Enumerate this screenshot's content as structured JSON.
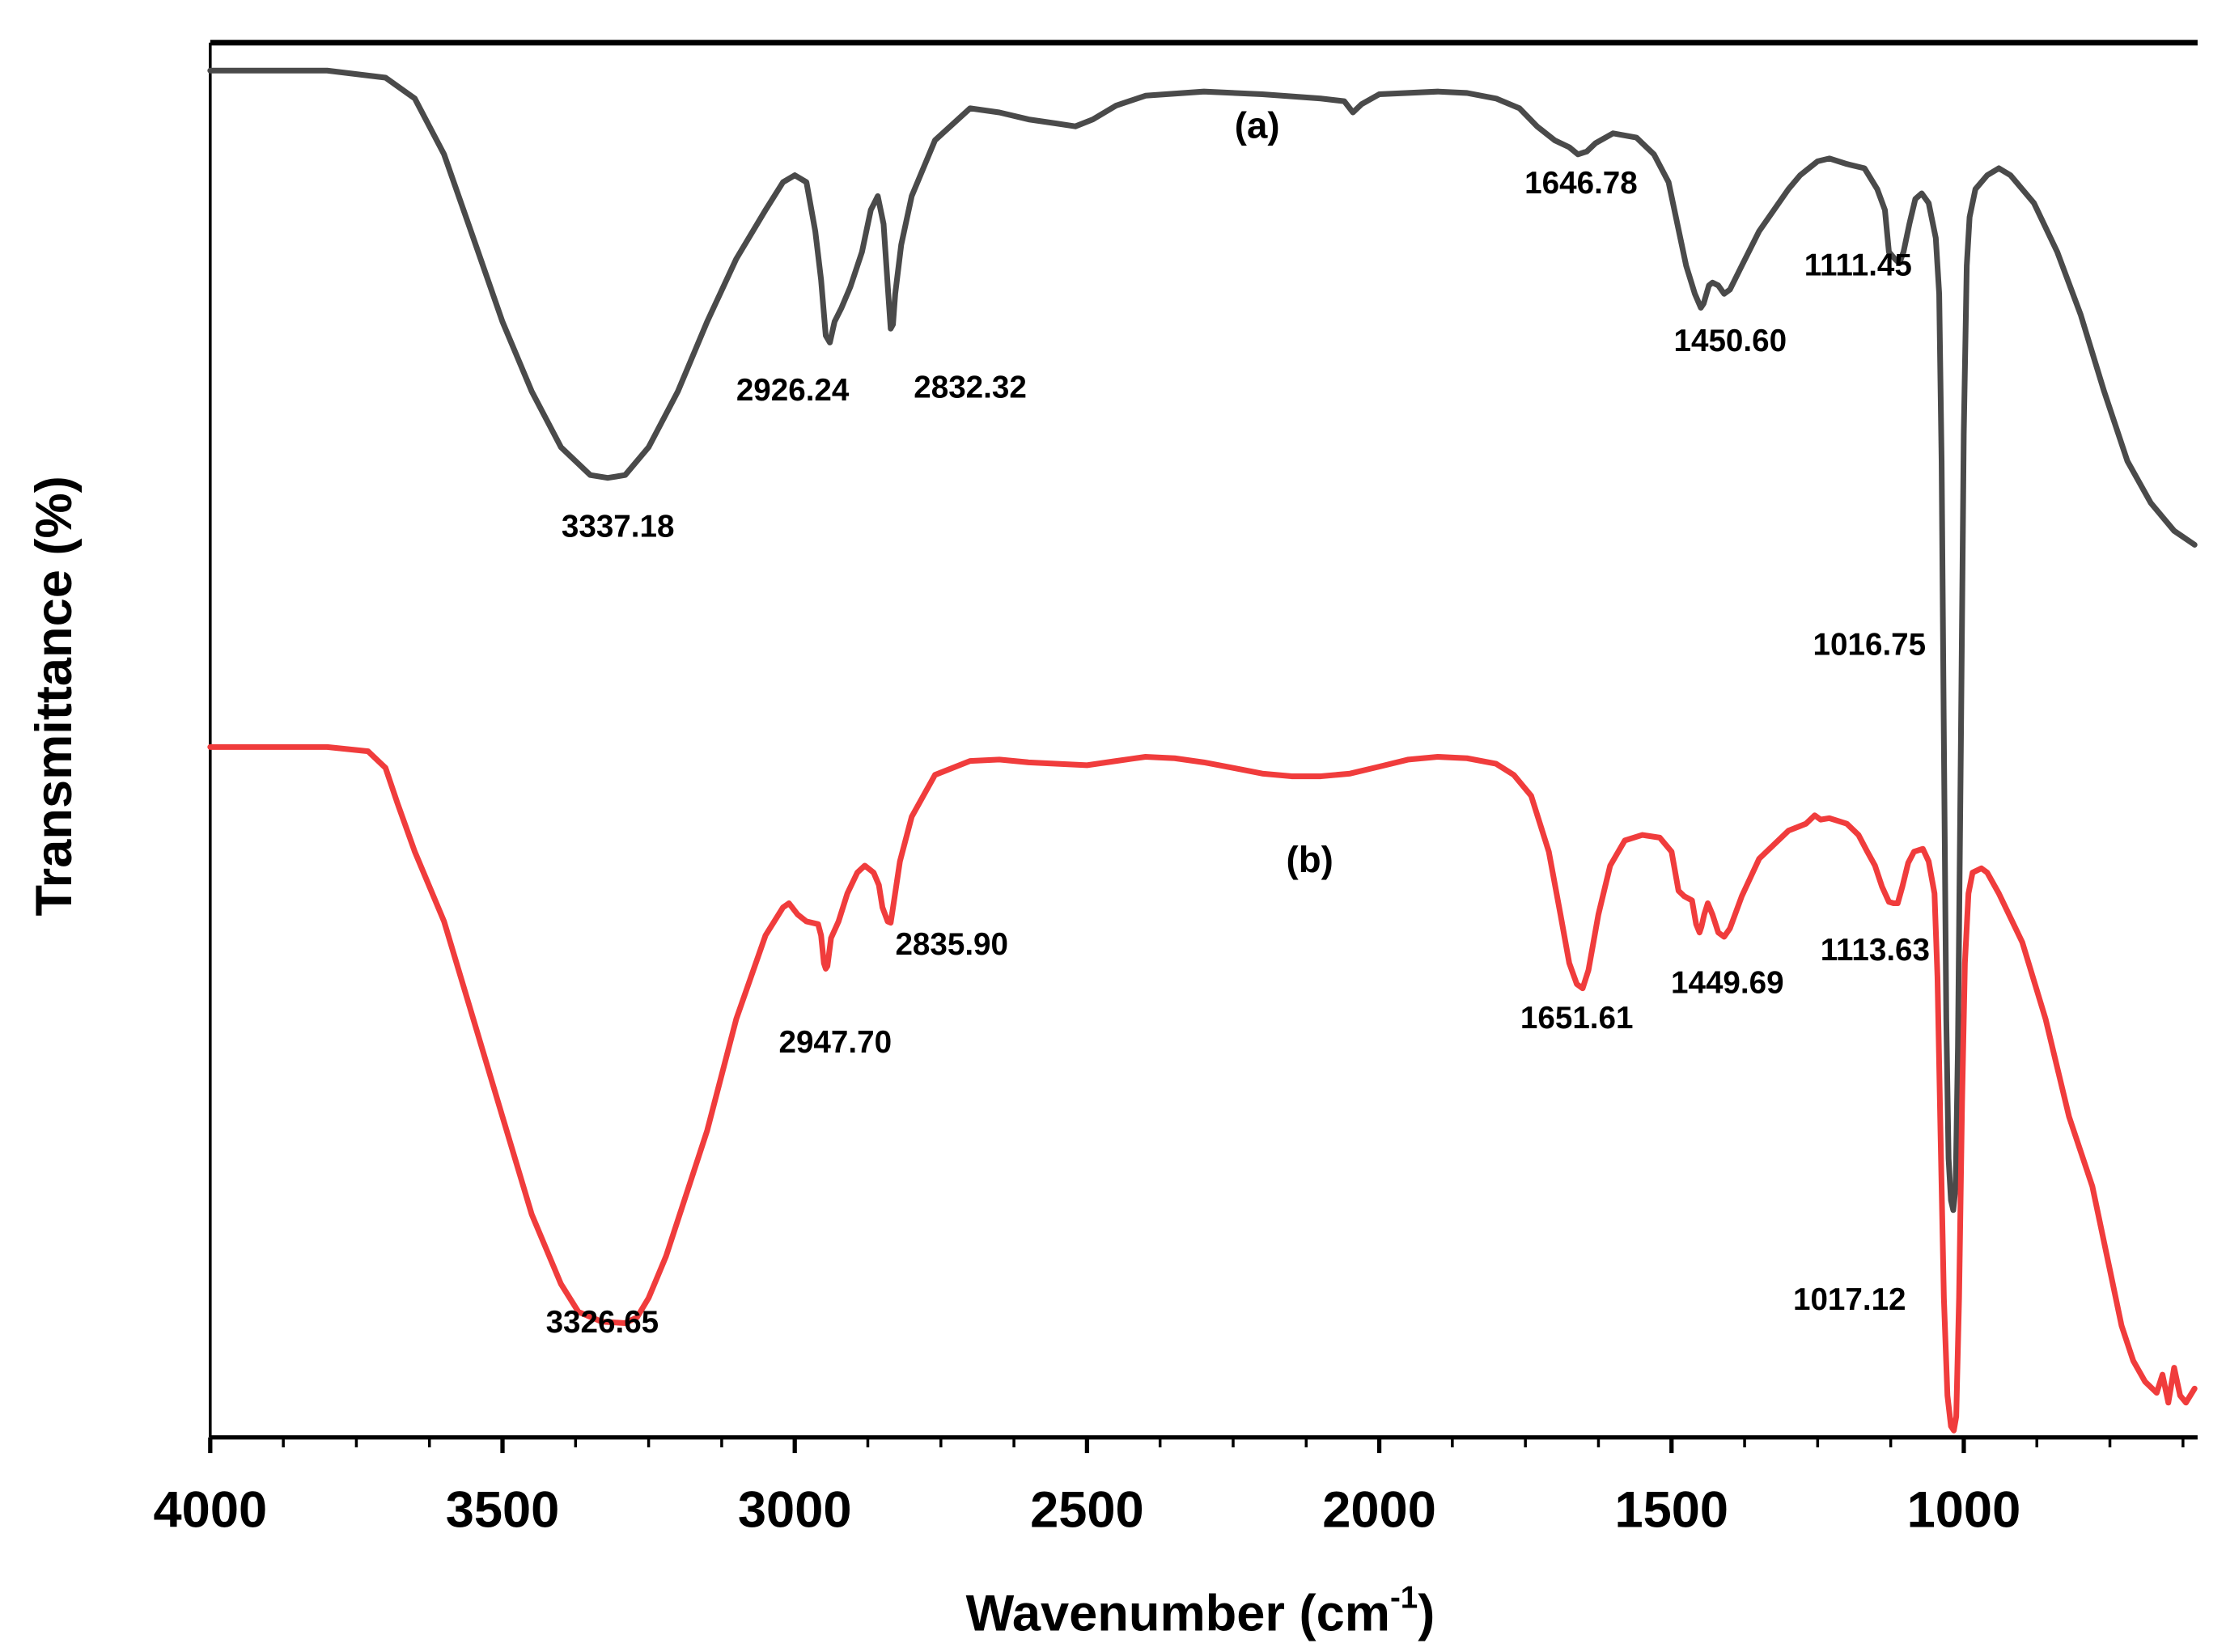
{
  "chart_data": {
    "type": "line",
    "title": "",
    "xlabel": "Wavenumber (cm",
    "xlabel_sup": "-1",
    "xlabel_end": ")",
    "ylabel": "Transmittance (%)",
    "xlim": [
      4000,
      600
    ],
    "x_reversed": true,
    "x_ticks": [
      {
        "value": 4000,
        "label": "4000"
      },
      {
        "value": 3500,
        "label": "3500"
      },
      {
        "value": 3000,
        "label": "3000"
      },
      {
        "value": 2500,
        "label": "2500"
      },
      {
        "value": 2000,
        "label": "2000"
      },
      {
        "value": 1500,
        "label": "1500"
      },
      {
        "value": 1000,
        "label": "1000"
      }
    ],
    "grid": false,
    "y_units": "relative transmittance (0 = bottom of plot, 100 = top of plot)",
    "series": [
      {
        "name": "(a)",
        "tag": "(a)",
        "tag_position": {
          "x": 1920,
          "y": 91
        },
        "color": "#4a4a4a",
        "points": [
          [
            4000,
            98
          ],
          [
            3900,
            98
          ],
          [
            3800,
            98
          ],
          [
            3700,
            97.5
          ],
          [
            3650,
            96
          ],
          [
            3600,
            92
          ],
          [
            3550,
            86
          ],
          [
            3500,
            80
          ],
          [
            3450,
            75
          ],
          [
            3400,
            71
          ],
          [
            3350,
            69
          ],
          [
            3320,
            68.8
          ],
          [
            3290,
            69
          ],
          [
            3250,
            71
          ],
          [
            3200,
            75
          ],
          [
            3150,
            80
          ],
          [
            3100,
            84.5
          ],
          [
            3050,
            88
          ],
          [
            3020,
            90
          ],
          [
            3000,
            90.5
          ],
          [
            2980,
            90
          ],
          [
            2965,
            86.5
          ],
          [
            2955,
            83
          ],
          [
            2947,
            79
          ],
          [
            2940,
            78.5
          ],
          [
            2932,
            80
          ],
          [
            2920,
            81
          ],
          [
            2905,
            82.5
          ],
          [
            2885,
            85
          ],
          [
            2870,
            88
          ],
          [
            2858,
            89
          ],
          [
            2848,
            87
          ],
          [
            2840,
            82
          ],
          [
            2836,
            79.5
          ],
          [
            2832,
            79.8
          ],
          [
            2828,
            82
          ],
          [
            2818,
            85.5
          ],
          [
            2800,
            89
          ],
          [
            2760,
            93
          ],
          [
            2700,
            95.3
          ],
          [
            2650,
            95
          ],
          [
            2600,
            94.5
          ],
          [
            2550,
            94.2
          ],
          [
            2520,
            94
          ],
          [
            2490,
            94.5
          ],
          [
            2450,
            95.5
          ],
          [
            2400,
            96.2
          ],
          [
            2300,
            96.5
          ],
          [
            2200,
            96.3
          ],
          [
            2100,
            96
          ],
          [
            2060,
            95.8
          ],
          [
            2045,
            95
          ],
          [
            2030,
            95.6
          ],
          [
            2000,
            96.3
          ],
          [
            1900,
            96.5
          ],
          [
            1850,
            96.4
          ],
          [
            1800,
            96
          ],
          [
            1760,
            95.3
          ],
          [
            1730,
            94
          ],
          [
            1700,
            93
          ],
          [
            1675,
            92.5
          ],
          [
            1660,
            92
          ],
          [
            1645,
            92.2
          ],
          [
            1630,
            92.8
          ],
          [
            1600,
            93.5
          ],
          [
            1560,
            93.2
          ],
          [
            1530,
            92
          ],
          [
            1505,
            90
          ],
          [
            1490,
            87
          ],
          [
            1475,
            84
          ],
          [
            1460,
            82
          ],
          [
            1450,
            81
          ],
          [
            1445,
            81.3
          ],
          [
            1436,
            82.6
          ],
          [
            1430,
            82.8
          ],
          [
            1420,
            82.6
          ],
          [
            1410,
            82
          ],
          [
            1400,
            82.3
          ],
          [
            1380,
            84
          ],
          [
            1350,
            86.5
          ],
          [
            1300,
            89.5
          ],
          [
            1280,
            90.5
          ],
          [
            1250,
            91.5
          ],
          [
            1230,
            91.7
          ],
          [
            1200,
            91.3
          ],
          [
            1170,
            91
          ],
          [
            1148,
            89.5
          ],
          [
            1135,
            88
          ],
          [
            1128,
            85
          ],
          [
            1118,
            84.5
          ],
          [
            1110,
            84.2
          ],
          [
            1103,
            85
          ],
          [
            1093,
            87
          ],
          [
            1083,
            88.8
          ],
          [
            1072,
            89.2
          ],
          [
            1060,
            88.5
          ],
          [
            1048,
            86
          ],
          [
            1042,
            82
          ],
          [
            1038,
            70
          ],
          [
            1034,
            50
          ],
          [
            1030,
            30
          ],
          [
            1026,
            20
          ],
          [
            1022,
            17
          ],
          [
            1018,
            16.3
          ],
          [
            1014,
            18
          ],
          [
            1010,
            28
          ],
          [
            1005,
            50
          ],
          [
            1000,
            72
          ],
          [
            995,
            84
          ],
          [
            990,
            87.5
          ],
          [
            980,
            89.5
          ],
          [
            960,
            90.5
          ],
          [
            940,
            91
          ],
          [
            920,
            90.5
          ],
          [
            880,
            88.5
          ],
          [
            840,
            85
          ],
          [
            800,
            80.5
          ],
          [
            760,
            75
          ],
          [
            720,
            70
          ],
          [
            680,
            67
          ],
          [
            640,
            65
          ],
          [
            605,
            64
          ]
        ]
      },
      {
        "name": "(b)",
        "tag": "(b)",
        "tag_position": {
          "x": 1995,
          "y": 605
        },
        "color": "#f03c3c",
        "points": [
          [
            4000,
            49.5
          ],
          [
            3900,
            49.5
          ],
          [
            3800,
            49.5
          ],
          [
            3730,
            49.2
          ],
          [
            3700,
            48
          ],
          [
            3680,
            45.5
          ],
          [
            3650,
            42
          ],
          [
            3600,
            37
          ],
          [
            3550,
            30
          ],
          [
            3500,
            23
          ],
          [
            3450,
            16
          ],
          [
            3400,
            11
          ],
          [
            3370,
            9
          ],
          [
            3330,
            8.3
          ],
          [
            3290,
            8.2
          ],
          [
            3270,
            8.6
          ],
          [
            3250,
            10
          ],
          [
            3220,
            13
          ],
          [
            3150,
            22
          ],
          [
            3100,
            30
          ],
          [
            3050,
            36
          ],
          [
            3020,
            38
          ],
          [
            3010,
            38.3
          ],
          [
            2995,
            37.5
          ],
          [
            2980,
            37
          ],
          [
            2960,
            36.8
          ],
          [
            2955,
            36
          ],
          [
            2950,
            34
          ],
          [
            2947,
            33.6
          ],
          [
            2944,
            33.8
          ],
          [
            2938,
            35.8
          ],
          [
            2925,
            37
          ],
          [
            2910,
            39
          ],
          [
            2893,
            40.5
          ],
          [
            2880,
            41
          ],
          [
            2865,
            40.5
          ],
          [
            2856,
            39.6
          ],
          [
            2850,
            38
          ],
          [
            2841,
            37
          ],
          [
            2836,
            36.9
          ],
          [
            2830,
            38.5
          ],
          [
            2820,
            41.3
          ],
          [
            2800,
            44.5
          ],
          [
            2760,
            47.5
          ],
          [
            2700,
            48.5
          ],
          [
            2650,
            48.6
          ],
          [
            2600,
            48.4
          ],
          [
            2550,
            48.3
          ],
          [
            2500,
            48.2
          ],
          [
            2450,
            48.5
          ],
          [
            2400,
            48.8
          ],
          [
            2350,
            48.7
          ],
          [
            2300,
            48.4
          ],
          [
            2250,
            48
          ],
          [
            2200,
            47.6
          ],
          [
            2150,
            47.4
          ],
          [
            2100,
            47.4
          ],
          [
            2050,
            47.6
          ],
          [
            2000,
            48.1
          ],
          [
            1950,
            48.6
          ],
          [
            1900,
            48.8
          ],
          [
            1850,
            48.7
          ],
          [
            1800,
            48.3
          ],
          [
            1770,
            47.5
          ],
          [
            1740,
            46
          ],
          [
            1710,
            42
          ],
          [
            1690,
            37.5
          ],
          [
            1675,
            34
          ],
          [
            1662,
            32.5
          ],
          [
            1652,
            32.2
          ],
          [
            1642,
            33.5
          ],
          [
            1625,
            37.5
          ],
          [
            1605,
            41
          ],
          [
            1580,
            42.8
          ],
          [
            1550,
            43.2
          ],
          [
            1520,
            43
          ],
          [
            1500,
            42
          ],
          [
            1488,
            39.2
          ],
          [
            1478,
            38.8
          ],
          [
            1465,
            38.5
          ],
          [
            1458,
            36.8
          ],
          [
            1452,
            36.2
          ],
          [
            1449,
            36.6
          ],
          [
            1444,
            37.5
          ],
          [
            1438,
            38.3
          ],
          [
            1430,
            37.5
          ],
          [
            1420,
            36.2
          ],
          [
            1410,
            35.9
          ],
          [
            1400,
            36.5
          ],
          [
            1380,
            38.8
          ],
          [
            1350,
            41.5
          ],
          [
            1300,
            43.5
          ],
          [
            1270,
            44
          ],
          [
            1255,
            44.6
          ],
          [
            1245,
            44.3
          ],
          [
            1230,
            44.4
          ],
          [
            1200,
            44
          ],
          [
            1180,
            43.2
          ],
          [
            1165,
            42
          ],
          [
            1152,
            41
          ],
          [
            1140,
            39.5
          ],
          [
            1128,
            38.4
          ],
          [
            1120,
            38.3
          ],
          [
            1113,
            38.3
          ],
          [
            1105,
            39.5
          ],
          [
            1095,
            41.2
          ],
          [
            1085,
            42
          ],
          [
            1070,
            42.2
          ],
          [
            1060,
            41.3
          ],
          [
            1050,
            39
          ],
          [
            1045,
            33
          ],
          [
            1040,
            22
          ],
          [
            1034,
            10
          ],
          [
            1028,
            3
          ],
          [
            1022,
            0.8
          ],
          [
            1017,
            0.5
          ],
          [
            1013,
            1.5
          ],
          [
            1008,
            10
          ],
          [
            1003,
            24
          ],
          [
            998,
            34
          ],
          [
            992,
            39
          ],
          [
            985,
            40.5
          ],
          [
            970,
            40.8
          ],
          [
            960,
            40.5
          ],
          [
            940,
            39
          ],
          [
            900,
            35.5
          ],
          [
            860,
            30
          ],
          [
            820,
            23
          ],
          [
            780,
            18
          ],
          [
            750,
            12
          ],
          [
            730,
            8
          ],
          [
            710,
            5.5
          ],
          [
            690,
            4
          ],
          [
            670,
            3.2
          ],
          [
            660,
            4.5
          ],
          [
            650,
            2.5
          ],
          [
            640,
            5
          ],
          [
            630,
            3
          ],
          [
            620,
            2.5
          ],
          [
            605,
            3.5
          ]
        ]
      }
    ],
    "annotations": [
      {
        "text": "3337.18",
        "x": 3337.18,
        "series": "(a)",
        "label_x": 435,
        "label_y": 375
      },
      {
        "text": "2926.24",
        "x": 2926.24,
        "series": "(a)",
        "label_x": 558,
        "label_y": 278
      },
      {
        "text": "2832.32",
        "x": 2832.32,
        "series": "(a)",
        "label_x": 683,
        "label_y": 276
      },
      {
        "text": "1646.78",
        "x": 1646.78,
        "series": "(a)",
        "label_x": 1113,
        "label_y": 132
      },
      {
        "text": "1450.60",
        "x": 1450.6,
        "series": "(a)",
        "label_x": 1218,
        "label_y": 243
      },
      {
        "text": "1111.45",
        "x": 1111.45,
        "series": "(a)",
        "label_x": 1308,
        "label_y": 190
      },
      {
        "text": "1016.75",
        "x": 1016.75,
        "series": "(a)",
        "label_x": 1316,
        "label_y": 457
      },
      {
        "text": "3326.65",
        "x": 3326.65,
        "series": "(b)",
        "label_x": 424,
        "label_y": 934
      },
      {
        "text": "2947.70",
        "x": 2947.7,
        "series": "(b)",
        "label_x": 588,
        "label_y": 737
      },
      {
        "text": "2835.90",
        "x": 2835.9,
        "series": "(b)",
        "label_x": 670,
        "label_y": 668
      },
      {
        "text": "1651.61",
        "x": 1651.61,
        "series": "(b)",
        "label_x": 1110,
        "label_y": 720
      },
      {
        "text": "1449.69",
        "x": 1449.69,
        "series": "(b)",
        "label_x": 1216,
        "label_y": 695
      },
      {
        "text": "1113.63",
        "x": 1113.63,
        "series": "(b)",
        "label_x": 1320,
        "label_y": 672
      },
      {
        "text": "1017.12",
        "x": 1017.12,
        "series": "(b)",
        "label_x": 1302,
        "label_y": 918
      }
    ]
  }
}
